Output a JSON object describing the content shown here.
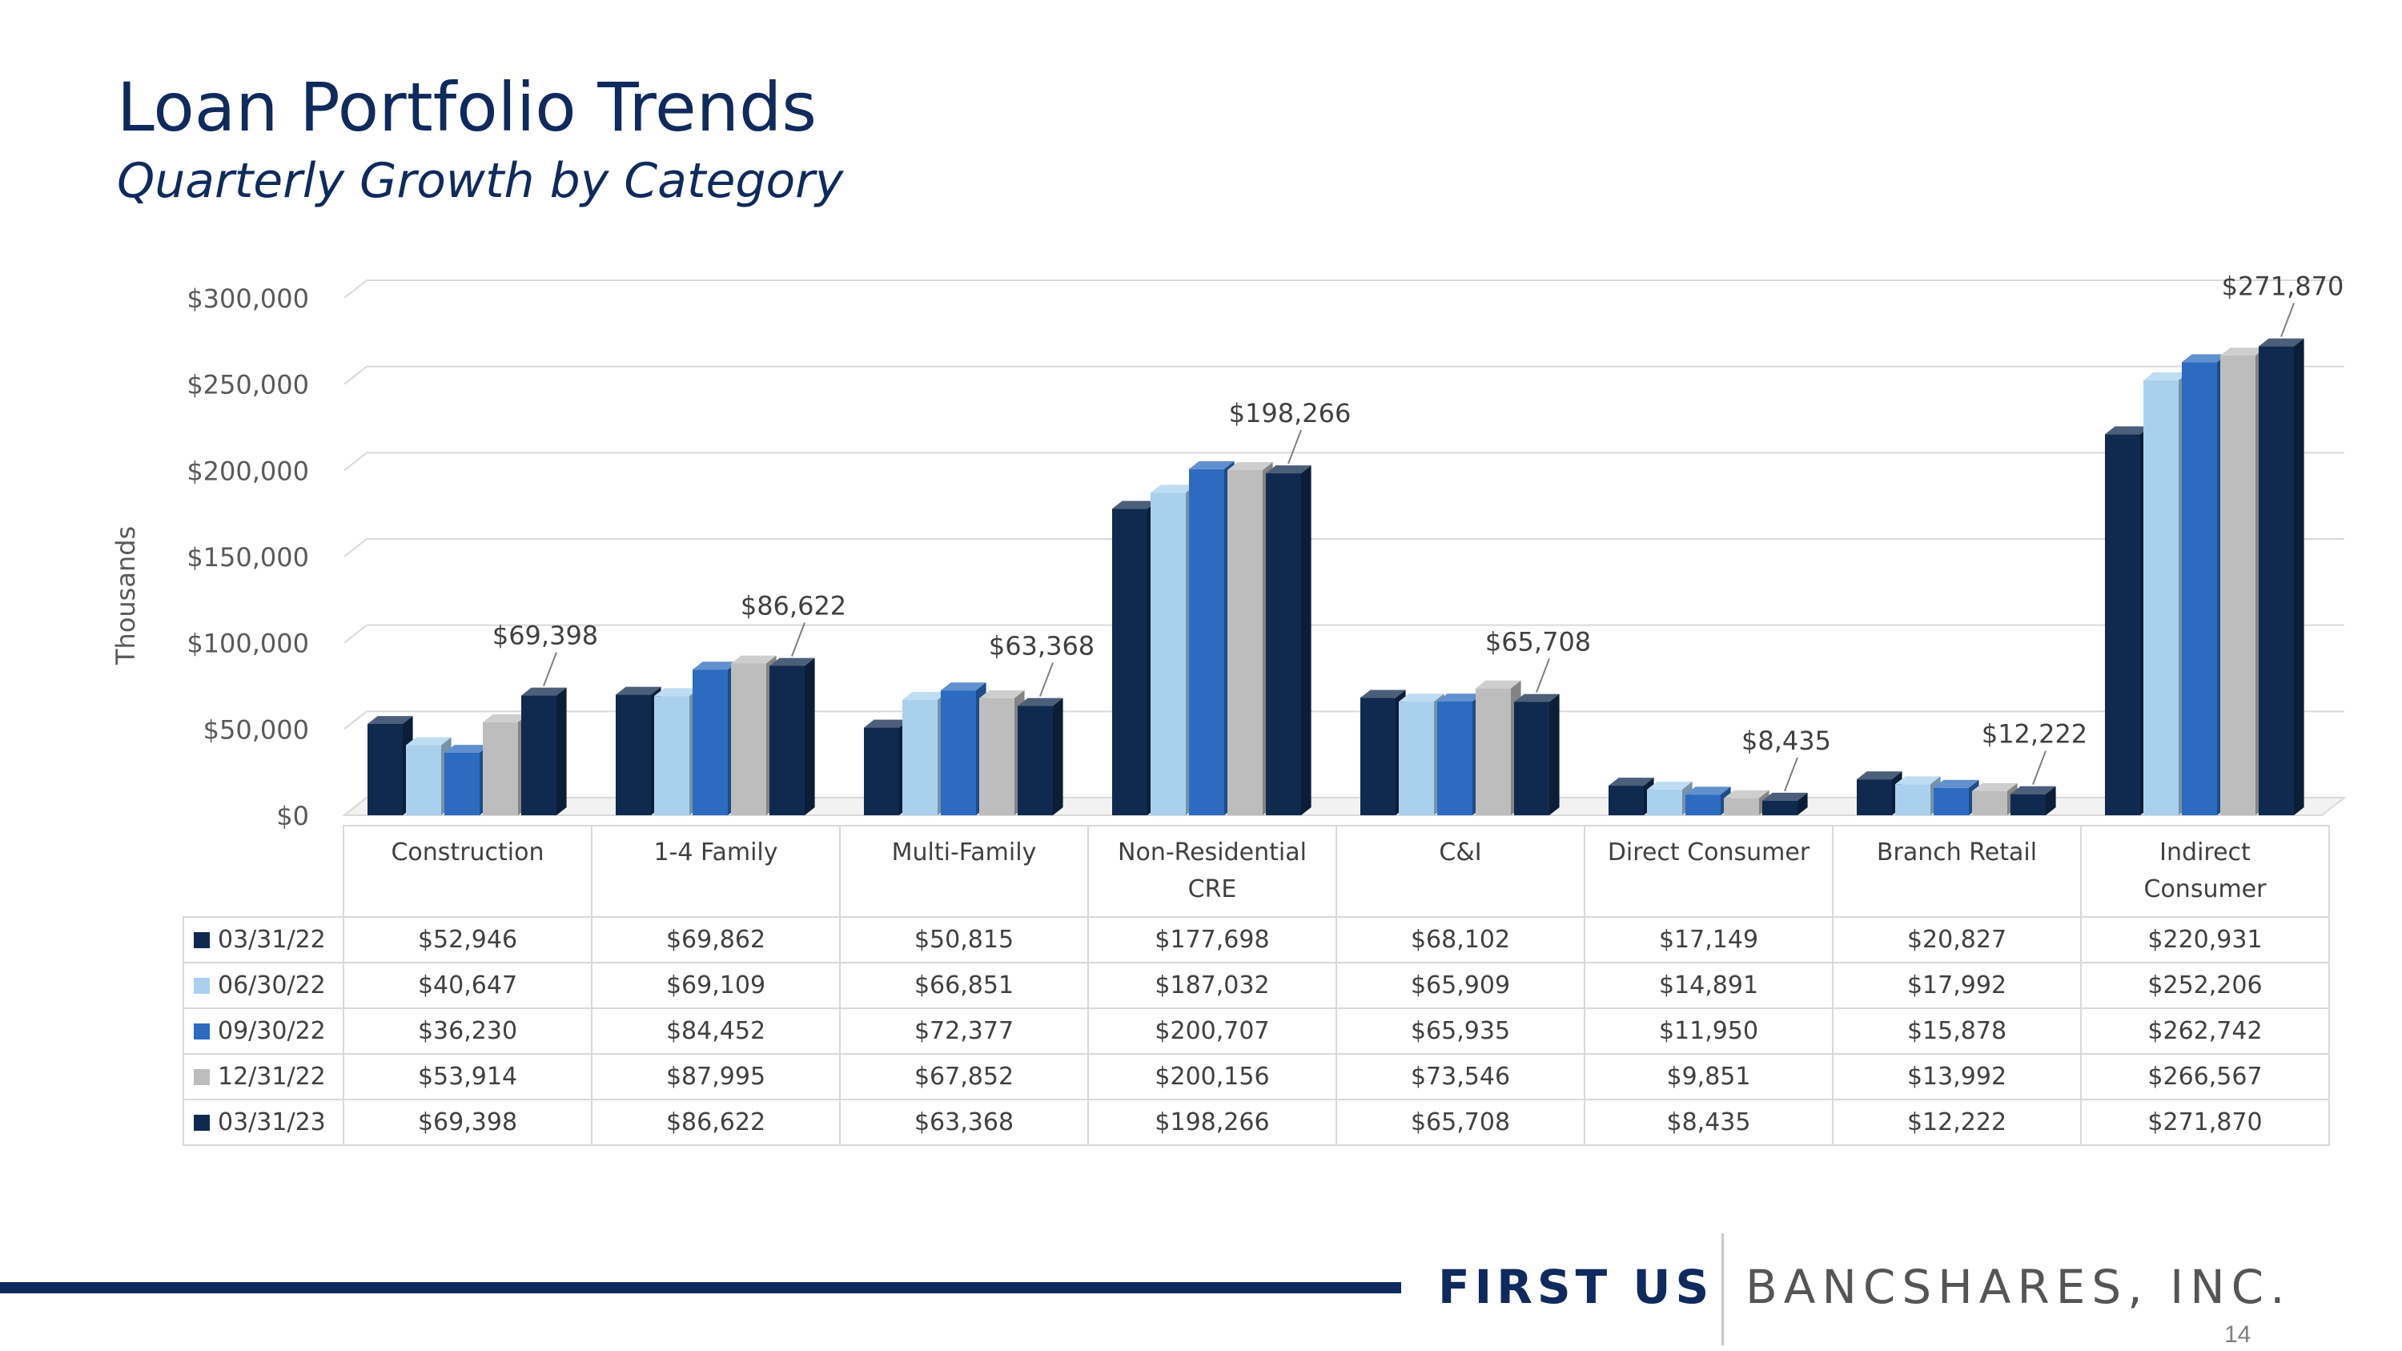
{
  "slide": {
    "title": "Loan Portfolio Trends",
    "subtitle": "Quarterly Growth by Category",
    "page_number": "14"
  },
  "footer": {
    "brand_primary": "FIRST US",
    "brand_secondary": "BANCSHARES, INC."
  },
  "chart_data": {
    "type": "bar",
    "ylabel": "Thousands",
    "ylim": [
      0,
      300000
    ],
    "yticks": [
      0,
      50000,
      100000,
      150000,
      200000,
      250000,
      300000
    ],
    "ytick_labels": [
      "$0",
      "$50,000",
      "$100,000",
      "$150,000",
      "$200,000",
      "$250,000",
      "$300,000"
    ],
    "grid": true,
    "legend": "data-table",
    "categories": [
      [
        "Construction"
      ],
      [
        "1-4 Family"
      ],
      [
        "Multi-Family"
      ],
      [
        "Non-Residential",
        "CRE"
      ],
      [
        "C&I"
      ],
      [
        "Direct Consumer"
      ],
      [
        "Branch Retail"
      ],
      [
        "Indirect",
        "Consumer"
      ]
    ],
    "series": [
      {
        "name": "03/31/22",
        "color": "#0f2a4e",
        "values": [
          52946,
          69862,
          50815,
          177698,
          68102,
          17149,
          20827,
          220931
        ],
        "labels": [
          "$52,946",
          "$69,862",
          "$50,815",
          "$177,698",
          "$68,102",
          "$17,149",
          "$20,827",
          "$220,931"
        ]
      },
      {
        "name": "06/30/22",
        "color": "#a9d1ee",
        "values": [
          40647,
          69109,
          66851,
          187032,
          65909,
          14891,
          17992,
          252206
        ],
        "labels": [
          "$40,647",
          "$69,109",
          "$66,851",
          "$187,032",
          "$65,909",
          "$14,891",
          "$17,992",
          "$252,206"
        ]
      },
      {
        "name": "09/30/22",
        "color": "#2c6bbf",
        "values": [
          36230,
          84452,
          72377,
          200707,
          65935,
          11950,
          15878,
          262742
        ],
        "labels": [
          "$36,230",
          "$84,452",
          "$72,377",
          "$200,707",
          "$65,935",
          "$11,950",
          "$15,878",
          "$262,742"
        ]
      },
      {
        "name": "12/31/22",
        "color": "#bdbdbd",
        "values": [
          53914,
          87995,
          67852,
          200156,
          73546,
          9851,
          13992,
          266567
        ],
        "labels": [
          "$53,914",
          "$87,995",
          "$67,852",
          "$200,156",
          "$73,546",
          "$9,851",
          "$13,992",
          "$266,567"
        ]
      },
      {
        "name": "03/31/23",
        "color": "#0f2a4e",
        "values": [
          69398,
          86622,
          63368,
          198266,
          65708,
          8435,
          12222,
          271870
        ],
        "labels": [
          "$69,398",
          "$86,622",
          "$63,368",
          "$198,266",
          "$65,708",
          "$8,435",
          "$12,222",
          "$271,870"
        ]
      }
    ],
    "annotations": [
      "$69,398",
      "$86,622",
      "$63,368",
      "$198,266",
      "$65,708",
      "$8,435",
      "$12,222",
      "$271,870"
    ]
  }
}
